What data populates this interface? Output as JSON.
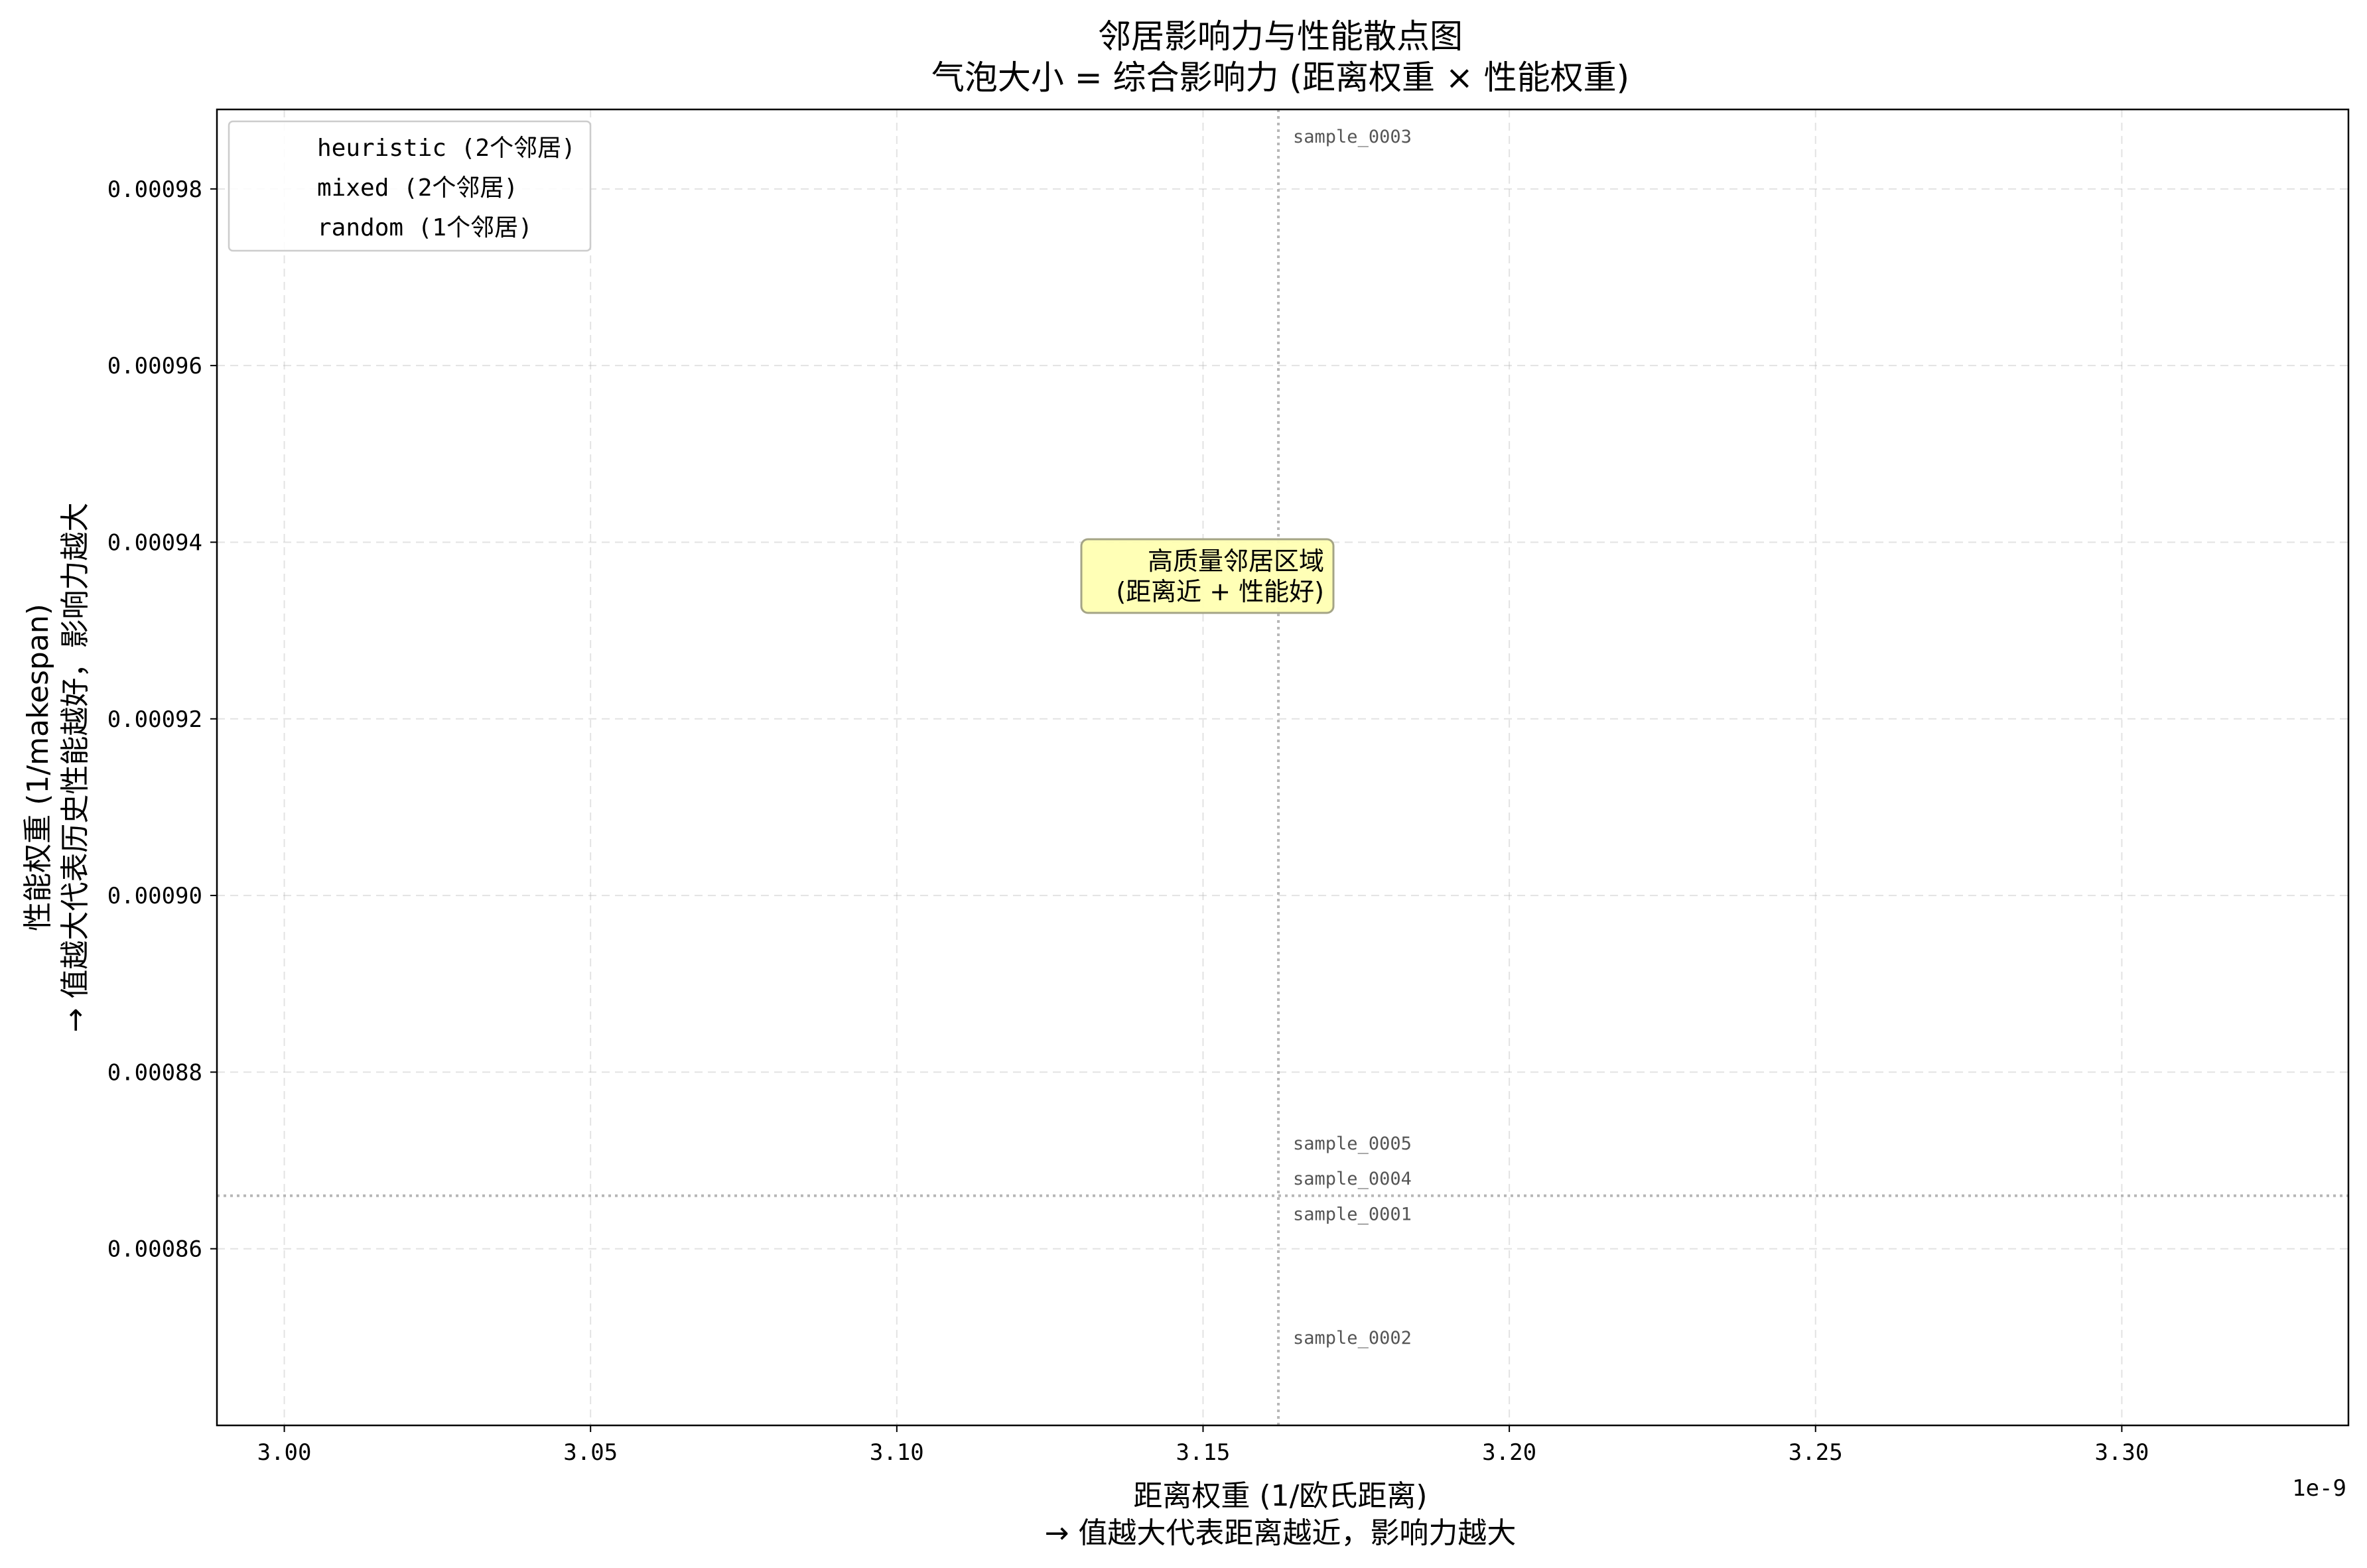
{
  "chart_data": {
    "type": "scatter",
    "title": "邻居影响力与性能散点图",
    "subtitle": "气泡大小 = 综合影响力 (距离权重 × 性能权重)",
    "xlabel_line1": "距离权重 (1/欧氏距离)",
    "xlabel_line2": "→ 值越大代表距离越近，影响力越大",
    "ylabel_line1": "性能权重 (1/makespan)",
    "ylabel_line2": "→ 值越大代表历史性能越好，影响力越大",
    "x_offset_label": "1e-9",
    "xlim": [
      2.989,
      3.337
    ],
    "ylim": [
      0.00084,
      0.000989
    ],
    "x_ticks": [
      3.0,
      3.05,
      3.1,
      3.15,
      3.2,
      3.25,
      3.3
    ],
    "x_tick_labels": [
      "3.00",
      "3.05",
      "3.10",
      "3.15",
      "3.20",
      "3.25",
      "3.30"
    ],
    "y_ticks": [
      0.00086,
      0.00088,
      0.0009,
      0.00092,
      0.00094,
      0.00096,
      0.00098
    ],
    "y_tick_labels": [
      "0.00086",
      "0.00088",
      "0.00090",
      "0.00092",
      "0.00094",
      "0.00096",
      "0.00098"
    ],
    "grid": true,
    "legend_position": "top-left",
    "legend": [
      {
        "label": "heuristic (2个邻居)"
      },
      {
        "label": "mixed (2个邻居)"
      },
      {
        "label": "random (1个邻居)"
      }
    ],
    "reference_lines": {
      "vertical_x": 3.1623,
      "horizontal_y": 0.000866
    },
    "points": [
      {
        "label": "sample_0003",
        "x": 3.1623,
        "y": 0.000986
      },
      {
        "label": "sample_0005",
        "x": 3.1623,
        "y": 0.000872
      },
      {
        "label": "sample_0004",
        "x": 3.1623,
        "y": 0.000868
      },
      {
        "label": "sample_0001",
        "x": 3.1623,
        "y": 0.000864
      },
      {
        "label": "sample_0002",
        "x": 3.1623,
        "y": 0.00085
      }
    ],
    "highlight_box": {
      "line1": "高质量邻居区域",
      "line2": "(距离近 + 性能好)",
      "x": 3.1623,
      "y": 0.000937,
      "color": "#ffffb3"
    }
  }
}
